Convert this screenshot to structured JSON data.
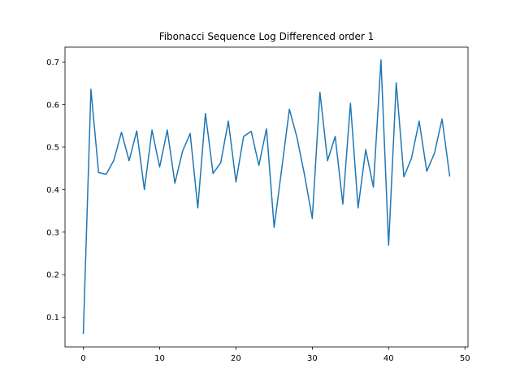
{
  "chart_data": {
    "type": "line",
    "title": "Fibonacci Sequence Log Differenced order 1",
    "xlabel": "",
    "ylabel": "",
    "xlim": [
      -2.4,
      50.4
    ],
    "ylim": [
      0.03,
      0.735
    ],
    "xticks": [
      0,
      10,
      20,
      30,
      40,
      50
    ],
    "yticks": [
      0.1,
      0.2,
      0.3,
      0.4,
      0.5,
      0.6,
      0.7
    ],
    "grid": false,
    "series": [
      {
        "color": "#1f77b4",
        "x": [
          0,
          1,
          2,
          3,
          4,
          5,
          6,
          7,
          8,
          9,
          10,
          11,
          12,
          13,
          14,
          15,
          16,
          17,
          18,
          19,
          20,
          21,
          22,
          23,
          24,
          25,
          26,
          27,
          28,
          29,
          30,
          31,
          32,
          33,
          34,
          35,
          36,
          37,
          38,
          39,
          40,
          41,
          42,
          43,
          44,
          45,
          46,
          47,
          48
        ],
        "values": [
          0.062,
          0.636,
          0.44,
          0.436,
          0.469,
          0.535,
          0.468,
          0.538,
          0.4,
          0.54,
          0.453,
          0.54,
          0.415,
          0.49,
          0.532,
          0.357,
          0.579,
          0.438,
          0.463,
          0.561,
          0.418,
          0.525,
          0.537,
          0.457,
          0.543,
          0.311,
          0.45,
          0.589,
          0.522,
          0.433,
          0.332,
          0.629,
          0.468,
          0.525,
          0.366,
          0.603,
          0.357,
          0.494,
          0.406,
          0.705,
          0.269,
          0.651,
          0.43,
          0.474,
          0.561,
          0.443,
          0.485,
          0.566,
          0.432
        ]
      }
    ]
  }
}
